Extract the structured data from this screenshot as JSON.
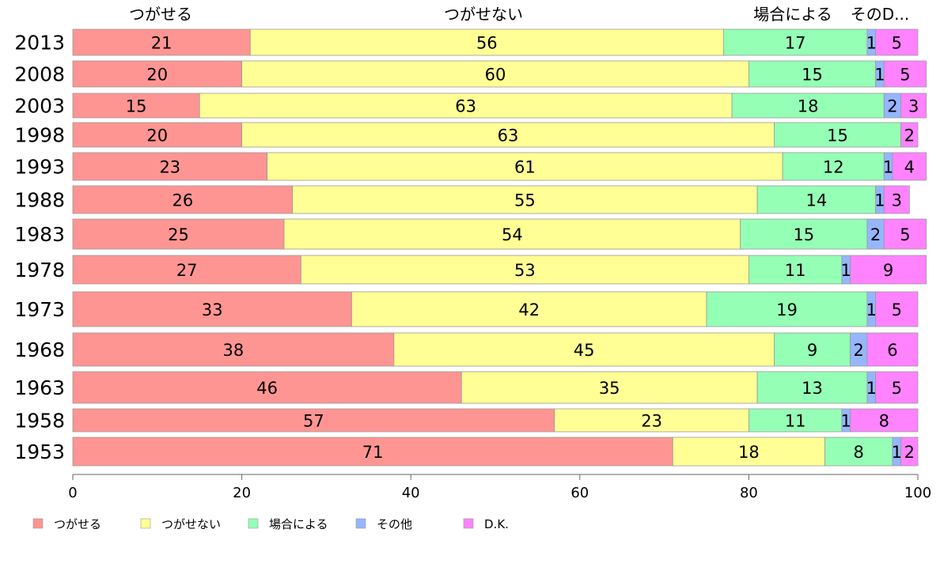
{
  "chart_data": {
    "type": "bar",
    "orientation": "horizontal",
    "stacked": true,
    "categories": [
      "2013",
      "2008",
      "2003",
      "1998",
      "1993",
      "1988",
      "1983",
      "1978",
      "1973",
      "1968",
      "1963",
      "1958",
      "1953"
    ],
    "series": [
      {
        "name": "つがせる",
        "color": "#ff9593",
        "values": [
          21,
          20,
          15,
          20,
          23,
          26,
          25,
          27,
          33,
          38,
          46,
          57,
          71
        ]
      },
      {
        "name": "つがせない",
        "color": "#ffff95",
        "values": [
          56,
          60,
          63,
          63,
          61,
          55,
          54,
          53,
          42,
          45,
          35,
          23,
          18
        ]
      },
      {
        "name": "場合による",
        "color": "#95ffb6",
        "values": [
          17,
          15,
          18,
          15,
          12,
          14,
          15,
          11,
          19,
          9,
          13,
          11,
          8
        ]
      },
      {
        "name": "その他",
        "color": "#95b6ff",
        "values": [
          1,
          1,
          2,
          0,
          1,
          1,
          2,
          1,
          1,
          2,
          1,
          1,
          1
        ]
      },
      {
        "name": "D.K.",
        "color": "#ff83ff",
        "values": [
          5,
          5,
          3,
          2,
          4,
          3,
          5,
          9,
          5,
          6,
          5,
          8,
          2
        ]
      }
    ],
    "top_labels": [
      "つがせる",
      "つがせない",
      "場合による",
      "そのD..."
    ],
    "xlim": [
      0,
      100
    ],
    "x_ticks": [
      "0",
      "20",
      "40",
      "60",
      "80",
      "100"
    ],
    "legend_position": "bottom",
    "legend": [
      "つがせる",
      "つがせない",
      "場合による",
      "その他",
      "D.K."
    ]
  }
}
